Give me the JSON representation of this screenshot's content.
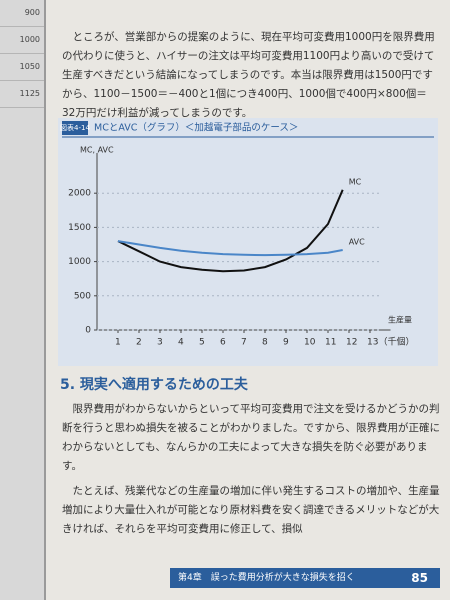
{
  "left_page": {
    "cells": [
      "900",
      "1000",
      "1050",
      "1125"
    ]
  },
  "paragraphs": [
    "ところが、営業部からの提案のように、現在平均可変費用1000円を限界費用の代わりに使うと、ハイサーの注文は平均可変費用1100円より高いので受けて生産すべきだという結論になってしまうのです。本当は限界費用は1500円ですから、1100－1500＝－400と1個につき400円、1000個で400円×800個＝32万円だけ利益が減ってしまうのです。",
    "限界費用がわからないからといって平均可変費用で注文を受けるかどうかの判断を行うと思わぬ損失を被ることがわかりました。ですから、限界費用が正確にわからないとしても、なんらかの工夫によって大きな損失を防ぐ必要があります。",
    "たとえば、残業代などの生産量の増加に伴い発生するコストの増加や、生産量増加により大量仕入れが可能となり原材料費を安く調達できるメリットなどが大きければ、それらを平均可変費用に修正して、損似"
  ],
  "heading": "5. 現実へ適用するための工夫",
  "footer": {
    "chapter": "第4章　誤った費用分析が大きな損失を招く",
    "page": "85"
  },
  "chart_data": {
    "type": "line",
    "figure_number": "図表4-14",
    "title": "MCとAVC（グラフ）＜加越電子部品のケース＞",
    "y_label": "MC, AVC",
    "x_label": "生産量",
    "x": [
      1,
      2,
      3,
      4,
      5,
      6,
      7,
      8,
      9,
      10,
      11,
      11.7
    ],
    "series": [
      {
        "name": "MC",
        "color": "#111111",
        "values": [
          1300,
          1150,
          1000,
          920,
          880,
          860,
          870,
          920,
          1030,
          1200,
          1550,
          2050
        ]
      },
      {
        "name": "AVC",
        "color": "#4a86c8",
        "values": [
          1300,
          1250,
          1200,
          1160,
          1130,
          1110,
          1100,
          1095,
          1100,
          1110,
          1130,
          1170
        ]
      }
    ],
    "xlim": [
      0,
      13.5
    ],
    "ylim": [
      0,
      2500
    ],
    "xticks": [
      1,
      2,
      3,
      4,
      5,
      6,
      7,
      8,
      9,
      10,
      11,
      12,
      {
        "value": 13,
        "label": "13（千個）"
      }
    ],
    "yticks": [
      0,
      500,
      1000,
      1500,
      2000
    ],
    "grid": true
  }
}
